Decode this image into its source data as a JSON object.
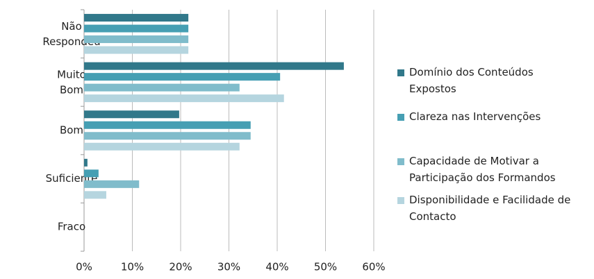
{
  "chart_data": {
    "type": "hbar",
    "categories": [
      "Não Respondeu",
      "Muito Bom",
      "Bom",
      "Suficiente",
      "Fraco"
    ],
    "series": [
      {
        "name": "Domínio dos Conteúdos Expostos",
        "color": "#31788a",
        "values": [
          21.6,
          53.8,
          19.7,
          0.7,
          0
        ]
      },
      {
        "name": "Clareza nas Intervenções",
        "color": "#469fb3",
        "values": [
          21.6,
          40.6,
          34.5,
          3.0,
          0
        ]
      },
      {
        "name": "Capacidade de Motivar a Participação dos Formandos",
        "color": "#80bccb",
        "values": [
          21.6,
          32.2,
          34.5,
          11.4,
          0
        ]
      },
      {
        "name": "Disponibilidade e Facilidade de Contacto",
        "color": "#b5d5df",
        "values": [
          21.6,
          41.4,
          32.2,
          4.6,
          0
        ]
      }
    ],
    "xlim": [
      0,
      60
    ],
    "xticks": [
      {
        "value": 0,
        "label": "0%"
      },
      {
        "value": 10,
        "label": "10%"
      },
      {
        "value": 20,
        "label": "20%"
      },
      {
        "value": 30,
        "label": "30%"
      },
      {
        "value": 40,
        "label": "40%"
      },
      {
        "value": 50,
        "label": "50%"
      },
      {
        "value": 60,
        "label": "60%"
      }
    ],
    "grid": true
  }
}
